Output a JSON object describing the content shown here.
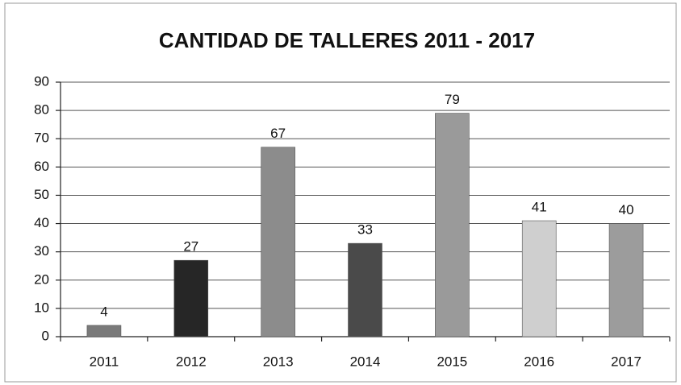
{
  "chart_data": {
    "type": "bar",
    "title": "CANTIDAD DE TALLERES 2011 - 2017",
    "categories": [
      "2011",
      "2012",
      "2013",
      "2014",
      "2015",
      "2016",
      "2017"
    ],
    "values": [
      4,
      27,
      67,
      33,
      79,
      41,
      40
    ],
    "colors": [
      "#7a7a7a",
      "#262626",
      "#8c8c8c",
      "#4a4a4a",
      "#9a9a9a",
      "#cfcfcf",
      "#9c9c9c"
    ],
    "ylim": [
      0,
      90
    ],
    "yticks": [
      0,
      10,
      20,
      30,
      40,
      50,
      60,
      70,
      80,
      90
    ],
    "grid": true
  }
}
